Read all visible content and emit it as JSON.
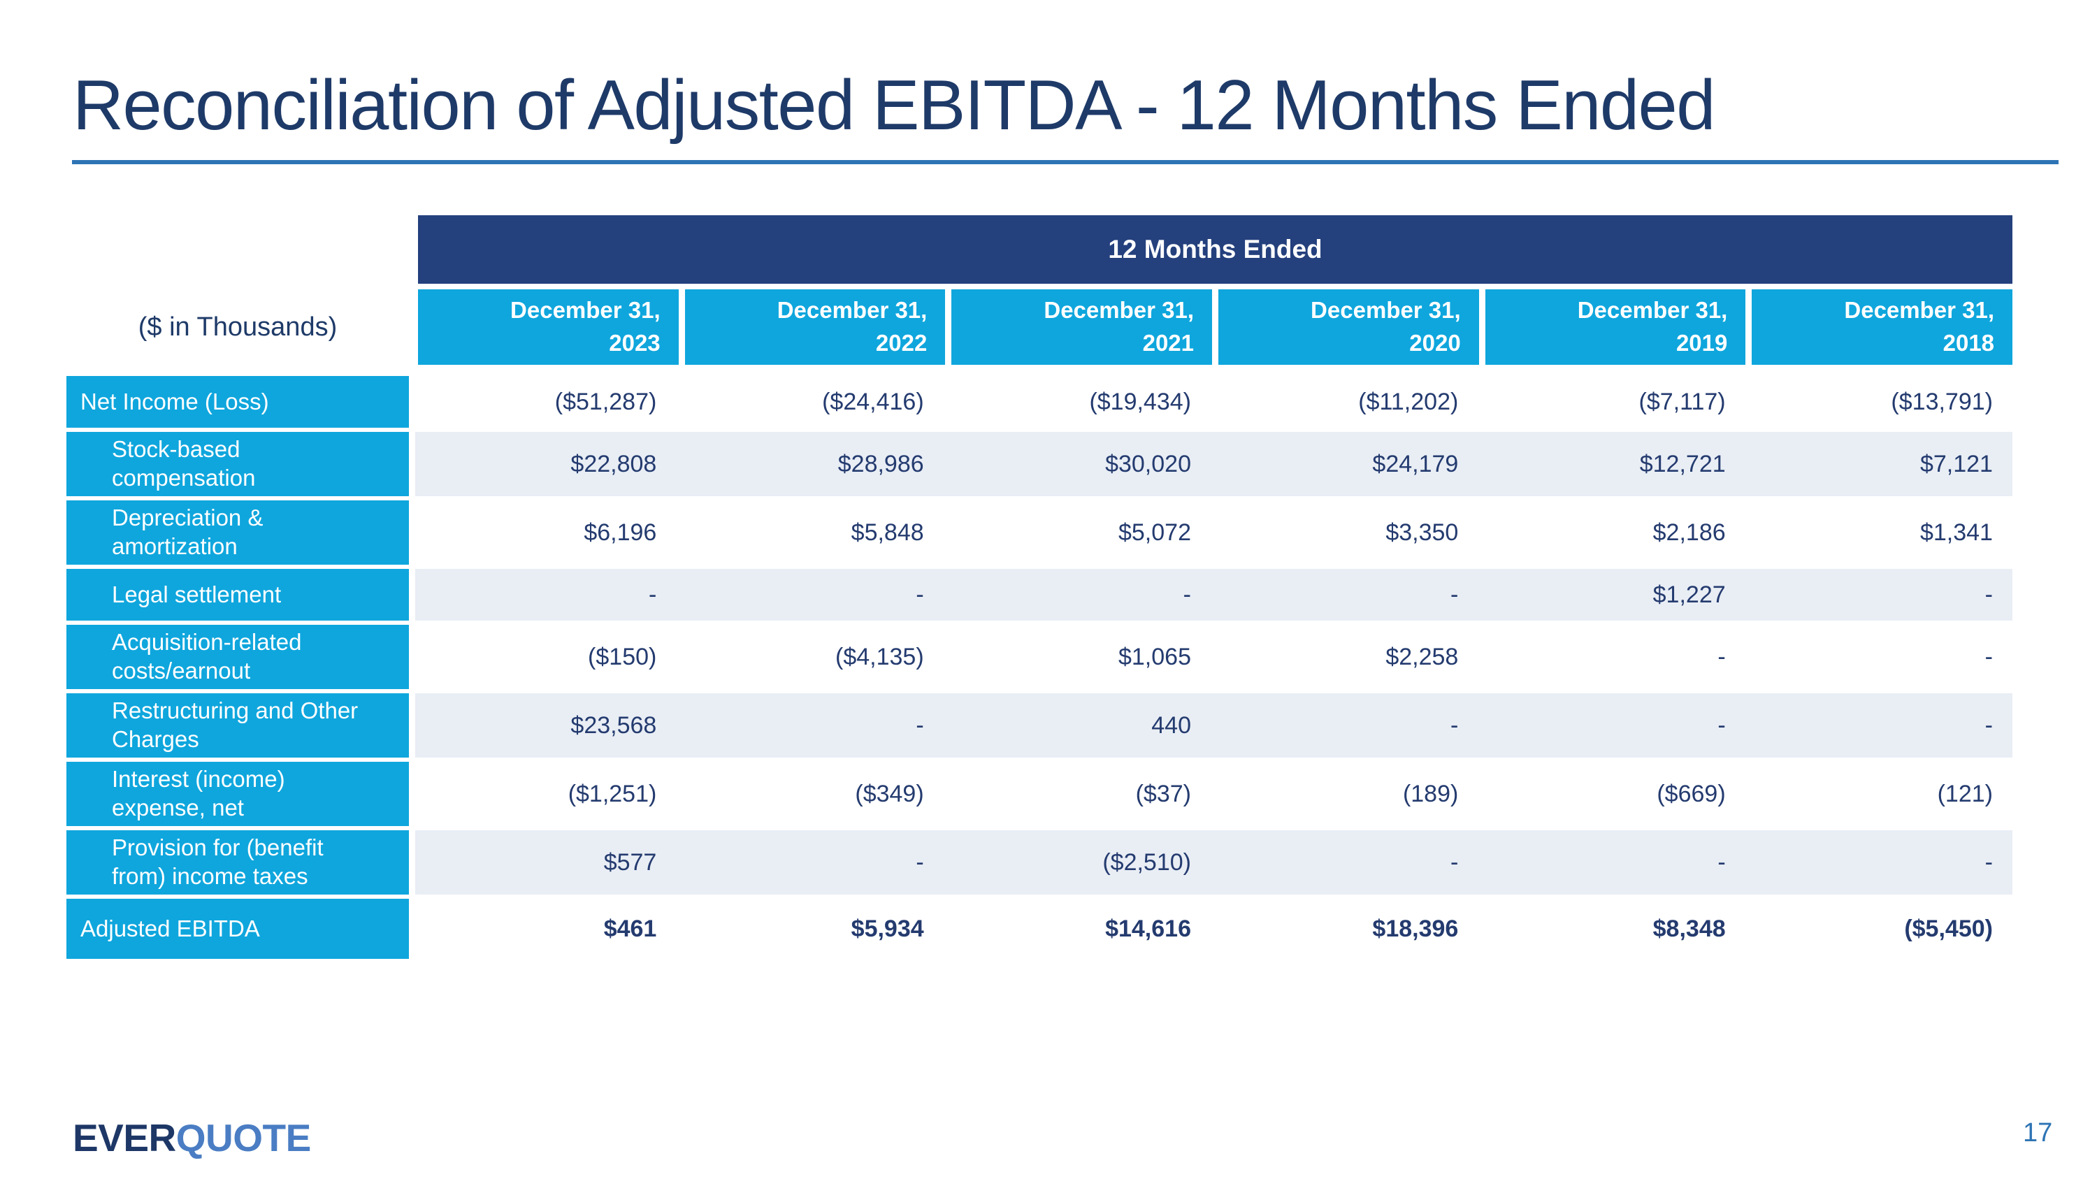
{
  "slide": {
    "title": "Reconciliation of Adjusted EBITDA - 12 Months Ended",
    "page_number": "17",
    "logo": {
      "part1": "EVER",
      "part2": "QUOTE"
    }
  },
  "table": {
    "units_label": "($ in Thousands)",
    "span_header": "12 Months Ended",
    "columns": [
      "December 31,\n2023",
      "December 31,\n2022",
      "December 31,\n2021",
      "December 31,\n2020",
      "December 31,\n2019",
      "December 31,\n2018"
    ],
    "rows": [
      {
        "label": "Net Income (Loss)",
        "indent": false,
        "bold": false,
        "values": [
          "($51,287)",
          "($24,416)",
          "($19,434)",
          "($11,202)",
          "($7,117)",
          "($13,791)"
        ]
      },
      {
        "label": "Stock-based\ncompensation",
        "indent": true,
        "bold": false,
        "values": [
          "$22,808",
          "$28,986",
          "$30,020",
          "$24,179",
          "$12,721",
          "$7,121"
        ]
      },
      {
        "label": "Depreciation &\namortization",
        "indent": true,
        "bold": false,
        "values": [
          "$6,196",
          "$5,848",
          "$5,072",
          "$3,350",
          "$2,186",
          "$1,341"
        ]
      },
      {
        "label": "Legal settlement",
        "indent": true,
        "bold": false,
        "values": [
          "-",
          "-",
          "-",
          "-",
          "$1,227",
          "-"
        ]
      },
      {
        "label": "Acquisition-related\ncosts/earnout",
        "indent": true,
        "bold": false,
        "values": [
          "($150)",
          "($4,135)",
          "$1,065",
          "$2,258",
          "-",
          "-"
        ]
      },
      {
        "label": "Restructuring and Other\nCharges",
        "indent": true,
        "bold": false,
        "values": [
          "$23,568",
          "-",
          "440",
          "-",
          "-",
          "-"
        ]
      },
      {
        "label": "Interest (income)\nexpense, net",
        "indent": true,
        "bold": false,
        "values": [
          "($1,251)",
          "($349)",
          "($37)",
          "(189)",
          "($669)",
          "(121)"
        ]
      },
      {
        "label": "Provision for (benefit\nfrom) income taxes",
        "indent": true,
        "bold": false,
        "values": [
          "$577",
          "-",
          "($2,510)",
          "-",
          "-",
          "-"
        ]
      },
      {
        "label": "Adjusted EBITDA",
        "indent": false,
        "bold": true,
        "values": [
          "$461",
          "$5,934",
          "$14,616",
          "$18,396",
          "$8,348",
          "($5,450)"
        ]
      }
    ]
  },
  "colors": {
    "header_navy": "#24407d",
    "accent_cyan": "#0fa6dd",
    "stripe_blue_gray": "#e9eef5",
    "rule_blue": "#2e74b5",
    "title_navy": "#1e3a68",
    "value_navy": "#243b6f",
    "logo_navy": "#1d3766",
    "logo_blue": "#4a7dc3"
  }
}
